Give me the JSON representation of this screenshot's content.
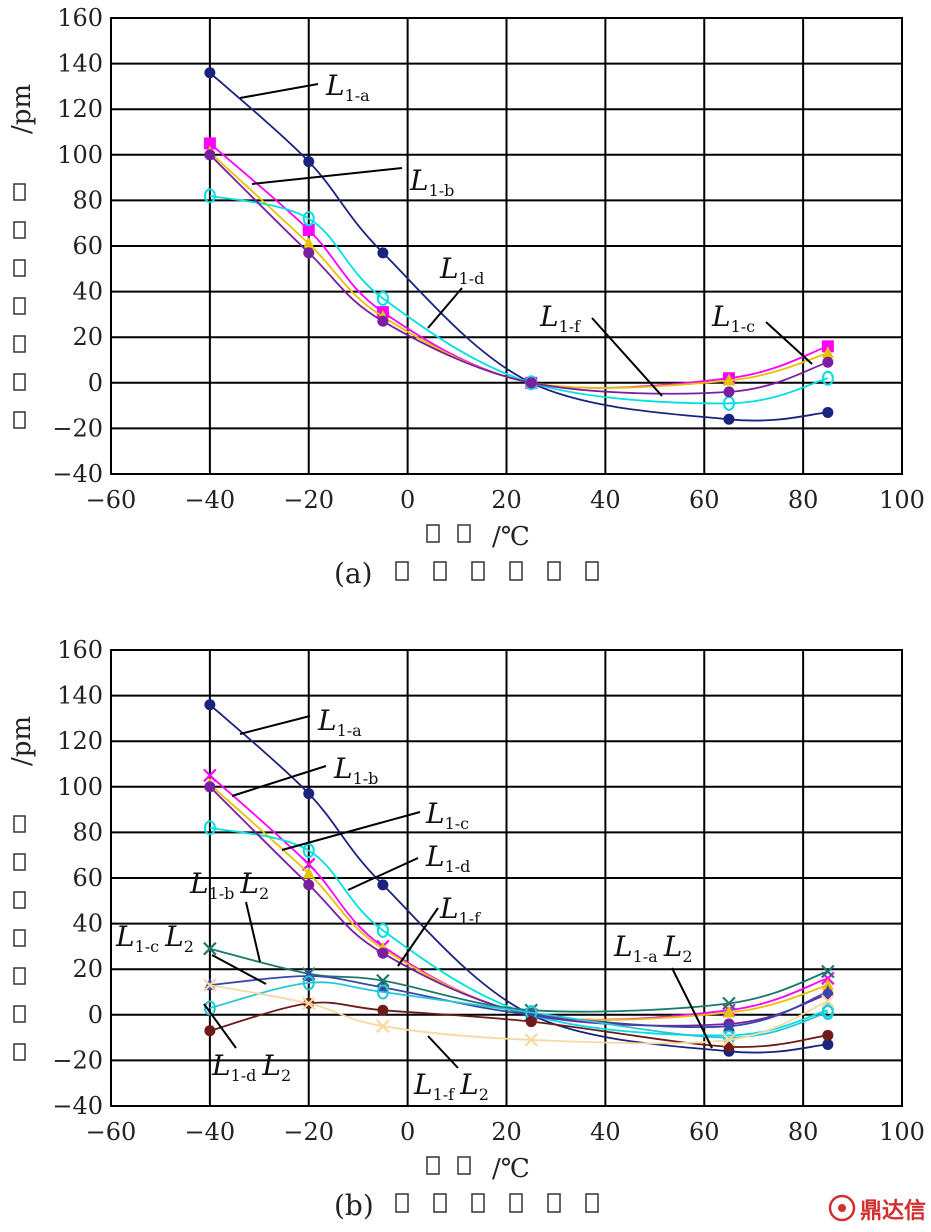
{
  "chart_data": [
    {
      "type": "line",
      "caption": "(a)",
      "xlabel": "/℃",
      "ylabel": "/pm",
      "xlim": [
        -60,
        100
      ],
      "ylim": [
        -40,
        160
      ],
      "xticks": [
        -60,
        -40,
        -20,
        0,
        20,
        40,
        60,
        80,
        100
      ],
      "yticks": [
        -40,
        -20,
        0,
        20,
        40,
        60,
        80,
        100,
        120,
        140,
        160
      ],
      "grid": true,
      "x": [
        -40,
        -20,
        -5,
        25,
        65,
        85
      ],
      "series": [
        {
          "name": "L1-a",
          "color": "#1a237e",
          "values": [
            136,
            97,
            57,
            0,
            -16,
            -13
          ]
        },
        {
          "name": "L1-b",
          "color": "#ff00ff",
          "values": [
            105,
            67,
            31,
            0,
            2,
            16
          ]
        },
        {
          "name": "L1-c",
          "color": "#e6c200",
          "values": [
            101,
            61,
            29,
            0,
            1,
            13
          ]
        },
        {
          "name": "L1-d",
          "color": "#00e0e0",
          "values": [
            82,
            72,
            37,
            0,
            -9,
            2
          ]
        },
        {
          "name": "L1-f",
          "color": "#7b1fa2",
          "values": [
            100,
            57,
            27,
            0,
            -4,
            9
          ]
        }
      ],
      "annotations": [
        {
          "base": "L",
          "sub": "1-a"
        },
        {
          "base": "L",
          "sub": "1-b"
        },
        {
          "base": "L",
          "sub": "1-d"
        },
        {
          "base": "L",
          "sub": "1-f"
        },
        {
          "base": "L",
          "sub": "1-c"
        }
      ]
    },
    {
      "type": "line",
      "caption": "(b)",
      "xlabel": "/℃",
      "ylabel": "/pm",
      "xlim": [
        -60,
        100
      ],
      "ylim": [
        -40,
        160
      ],
      "xticks": [
        -60,
        -40,
        -20,
        0,
        20,
        40,
        60,
        80,
        100
      ],
      "yticks": [
        -40,
        -20,
        0,
        20,
        40,
        60,
        80,
        100,
        120,
        140,
        160
      ],
      "grid": true,
      "x": [
        -40,
        -20,
        -5,
        25,
        65,
        85
      ],
      "series": [
        {
          "name": "L1-a",
          "color": "#1a237e",
          "values": [
            136,
            97,
            57,
            0,
            -16,
            -13
          ]
        },
        {
          "name": "L1-b",
          "color": "#ff00ff",
          "values": [
            105,
            66,
            30,
            0,
            2,
            16
          ]
        },
        {
          "name": "L1-c",
          "color": "#e6c200",
          "values": [
            101,
            62,
            29,
            0,
            1,
            13
          ]
        },
        {
          "name": "L1-d",
          "color": "#00e0e0",
          "values": [
            82,
            72,
            37,
            0,
            -9,
            2
          ]
        },
        {
          "name": "L1-f",
          "color": "#7b1fa2",
          "values": [
            100,
            57,
            27,
            0,
            -4,
            9
          ]
        },
        {
          "name": "L1-b L2",
          "color": "#1b7a6b",
          "values": [
            29,
            18,
            15,
            2,
            5,
            19
          ]
        },
        {
          "name": "L1-c L2",
          "color": "#3949ab",
          "values": [
            13,
            17,
            12,
            0,
            -5,
            10
          ]
        },
        {
          "name": "L1-a L2",
          "color": "#26c6da",
          "values": [
            3,
            14,
            10,
            1,
            -10,
            1
          ]
        },
        {
          "name": "L1-d L2",
          "color": "#6d1b1b",
          "values": [
            -7,
            5,
            2,
            -3,
            -14,
            -9
          ]
        },
        {
          "name": "L1-f L2",
          "color": "#f7d9a0",
          "values": [
            13,
            5,
            -5,
            -11,
            -11,
            6
          ]
        }
      ],
      "annotations": [
        {
          "base": "L",
          "sub": "1-a"
        },
        {
          "base": "L",
          "sub": "1-b"
        },
        {
          "base": "L",
          "sub": "1-c"
        },
        {
          "base": "L",
          "sub": "1-d"
        },
        {
          "base": "L",
          "sub": "1-f"
        },
        {
          "base": "L",
          "sub": "1-b",
          "base2": "L",
          "sub2": "2"
        },
        {
          "base": "L",
          "sub": "1-c",
          "base2": "L",
          "sub2": "2"
        },
        {
          "base": "L",
          "sub": "1-a",
          "base2": "L",
          "sub2": "2"
        },
        {
          "base": "L",
          "sub": "1-d",
          "base2": "L",
          "sub2": "2"
        },
        {
          "base": "L",
          "sub": "1-f",
          "base2": "L",
          "sub2": "2"
        }
      ]
    }
  ],
  "watermark": {
    "text": "鼎达信",
    "color": "#d32f2f"
  }
}
